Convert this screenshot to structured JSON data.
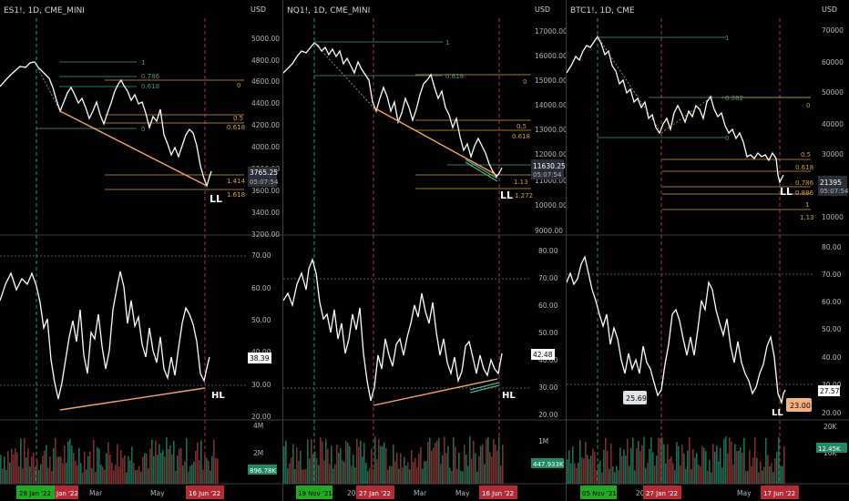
{
  "colors": {
    "bg": "#000000",
    "price_line": "#ffffff",
    "fib_green": "#3f9e76",
    "fib_orange": "#d1a042",
    "trend_line": "#f4a460",
    "alt_trend": "#4fb08a",
    "vertical_green": "#2e9e3f",
    "vertical_red": "#a33a3a",
    "vol_green": "#1f6b52",
    "vol_red": "#7a2e2e",
    "date_green_badge": "#22aa22",
    "date_red_badge": "#b22b35",
    "pane_divider": "#3a3e48"
  },
  "panels": [
    {
      "id": "es",
      "symbol_label": "ES1!, 1D, CME_MINI",
      "currency_label": "USD",
      "price_axis": [
        "5000.00",
        "4800.00",
        "4600.00",
        "4400.00",
        "4200.00",
        "4000.00",
        "3800.00",
        "3600.00",
        "3400.00",
        "3200.00"
      ],
      "price_badge": {
        "value": "3765.25",
        "countdown": "05:07:54"
      },
      "fib_levels": [
        {
          "ratio": "1",
          "color": "green"
        },
        {
          "ratio": "0.786",
          "color": "green"
        },
        {
          "ratio": "0.618",
          "color": "green"
        },
        {
          "ratio": "0",
          "color": "orange"
        },
        {
          "ratio": "0.5",
          "color": "orange"
        },
        {
          "ratio": "0.618",
          "color": "orange"
        },
        {
          "ratio": "0",
          "color": "green"
        },
        {
          "ratio": "1.414",
          "color": "orange"
        },
        {
          "ratio": "1.618",
          "color": "orange"
        }
      ],
      "price_tag": "LL",
      "rsi_axis": [
        "70.00",
        "60.00",
        "50.00",
        "40.00",
        "30.00",
        "20.00"
      ],
      "rsi_badge": "38.39",
      "rsi_tag": "HL",
      "volume_axis": [
        "4M",
        "2M"
      ],
      "volume_badge": "896.78K",
      "time_labels": [
        "Mar",
        "May"
      ],
      "date_badges": [
        {
          "label": "28 Jan '22",
          "color": "green"
        },
        {
          "label": "Jan '22",
          "color": "red"
        },
        {
          "label": "16 Jun '22",
          "color": "red"
        }
      ]
    },
    {
      "id": "nq",
      "symbol_label": "NQ1!, 1D, CME_MINI",
      "currency_label": "USD",
      "price_axis": [
        "17000.00",
        "16000.00",
        "15000.00",
        "14000.00",
        "13000.00",
        "12000.00",
        "11000.00",
        "10000.00",
        "9000.00"
      ],
      "price_badge": {
        "value": "11630.25",
        "countdown": "05:07:54"
      },
      "fib_levels": [
        {
          "ratio": "1",
          "color": "green"
        },
        {
          "ratio": "0.618",
          "color": "green"
        },
        {
          "ratio": "0",
          "color": "orange"
        },
        {
          "ratio": "0.5",
          "color": "orange"
        },
        {
          "ratio": "0.618",
          "color": "orange"
        },
        {
          "ratio": "1.13",
          "color": "orange"
        },
        {
          "ratio": "1.272",
          "color": "orange"
        }
      ],
      "price_tag": "LL",
      "rsi_axis": [
        "80.00",
        "70.00",
        "60.00",
        "50.00",
        "40.00",
        "30.00",
        "20.00"
      ],
      "rsi_badge": "42.48",
      "rsi_tag": "HL",
      "volume_axis": [
        "1M"
      ],
      "volume_badge": "447.933K",
      "time_labels": [
        "Mar",
        "May",
        "202"
      ],
      "date_badges": [
        {
          "label": "19 Nov '21",
          "color": "green"
        },
        {
          "label": "27 Jan '22",
          "color": "red"
        },
        {
          "label": "16 Jun '22",
          "color": "red"
        }
      ]
    },
    {
      "id": "btc",
      "symbol_label": "BTC1!, 1D, CME",
      "currency_label": "USD",
      "price_axis": [
        "70000",
        "60000",
        "50000",
        "40000",
        "30000",
        "20000",
        "10000"
      ],
      "price_badge": {
        "value": "21395",
        "countdown": "05:07:54"
      },
      "fib_levels": [
        {
          "ratio": "1",
          "color": "green"
        },
        {
          "ratio": "0.382",
          "color": "green"
        },
        {
          "ratio": "0",
          "color": "orange"
        },
        {
          "ratio": "0",
          "color": "green"
        },
        {
          "ratio": "0.5",
          "color": "orange"
        },
        {
          "ratio": "0.618",
          "color": "orange"
        },
        {
          "ratio": "0.786",
          "color": "orange"
        },
        {
          "ratio": "0.886",
          "color": "orange"
        },
        {
          "ratio": "1",
          "color": "orange"
        },
        {
          "ratio": "1.13",
          "color": "orange"
        }
      ],
      "price_tag": "LL",
      "rsi_axis": [
        "80.00",
        "70.00",
        "60.00",
        "50.00",
        "40.00",
        "30.00",
        "20.00"
      ],
      "rsi_badge": "27.57",
      "rsi_callouts": [
        "25.69",
        "23.00"
      ],
      "rsi_tag": "LL",
      "volume_axis": [
        "20K",
        "10K"
      ],
      "volume_badge": "12.45K",
      "time_labels": [
        "May",
        "202"
      ],
      "date_badges": [
        {
          "label": "05 Nov '21",
          "color": "green"
        },
        {
          "label": "27 Jan '22",
          "color": "red"
        },
        {
          "label": "17 Jun '22",
          "color": "red"
        }
      ]
    }
  ]
}
